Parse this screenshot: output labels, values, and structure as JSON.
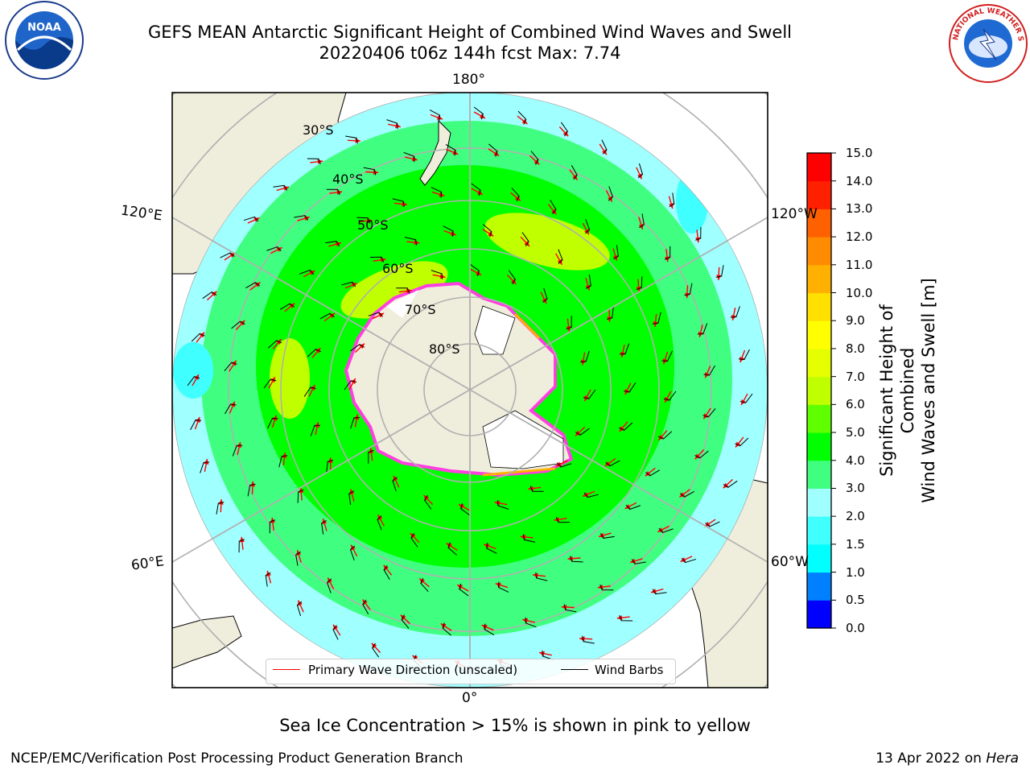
{
  "title_line1": "GEFS MEAN Antarctic Significant Height of Combined Wind Waves and Swell",
  "title_line2": "20220406 t06z 144h fcst   Max: 7.74",
  "logos": {
    "left": "NOAA",
    "right": "NATIONAL WEATHER SERVICE"
  },
  "map": {
    "longitude_labels": {
      "top": "180°",
      "bottom": "0°",
      "upper_left": "120°E",
      "upper_right": "120°W",
      "lower_left": "60°E",
      "lower_right": "60°W"
    },
    "latitude_labels": [
      "30°S",
      "40°S",
      "50°S",
      "60°S",
      "70°S",
      "80°S"
    ]
  },
  "legend": {
    "wave": "Primary Wave Direction (unscaled)",
    "wave_color": "#ff0000",
    "barbs": "Wind Barbs",
    "barbs_color": "#000000"
  },
  "colorbar": {
    "title_line1": "Significant Height of Combined",
    "title_line2": "Wind Waves and Swell [m]",
    "ticks": [
      "0.0",
      "0.5",
      "1.0",
      "1.5",
      "2.0",
      "3.0",
      "4.0",
      "5.0",
      "6.0",
      "7.0",
      "8.0",
      "9.0",
      "10.0",
      "11.0",
      "12.0",
      "13.0",
      "14.0",
      "15.0"
    ],
    "colors": [
      "#0000ff",
      "#0080ff",
      "#00ffff",
      "#40ffff",
      "#a0ffff",
      "#40ff80",
      "#00ff00",
      "#60ff00",
      "#c0ff00",
      "#e6ff00",
      "#ffff00",
      "#ffe000",
      "#ffb000",
      "#ff8c00",
      "#ff6000",
      "#ff2000",
      "#ff0000"
    ]
  },
  "note": "Sea Ice Concentration > 15% is shown in pink to yellow",
  "footer_left": "NCEP/EMC/Verification Post Processing Product Generation Branch",
  "footer_date": "13 Apr 2022 on ",
  "footer_host": "Hera"
}
